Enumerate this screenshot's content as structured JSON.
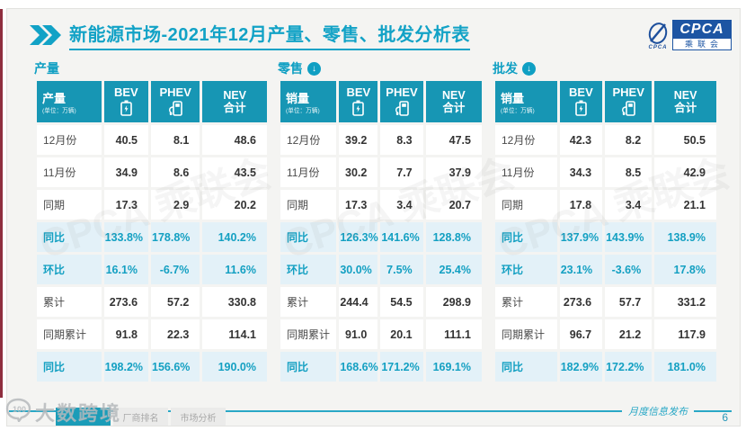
{
  "header": {
    "title": "新能源市场-2021年12月产量、零售、批发分析表",
    "logo": {
      "main": "CPCA",
      "sub": "乘联会",
      "emblem_caption": "CPCA"
    }
  },
  "icons": {
    "down_arrow": "↓"
  },
  "tables": [
    {
      "section_title": "产量",
      "header": {
        "label": "产量",
        "unit": "(单位：万辆)",
        "col_bev": "BEV",
        "col_phev": "PHEV",
        "col_nev_line1": "NEV",
        "col_nev_line2": "合计"
      },
      "rows": [
        {
          "label": "12月份",
          "values": [
            "40.5",
            "8.1",
            "48.6"
          ],
          "highlight": false
        },
        {
          "label": "11月份",
          "values": [
            "34.9",
            "8.6",
            "43.5"
          ],
          "highlight": false
        },
        {
          "label": "同期",
          "values": [
            "17.3",
            "2.9",
            "20.2"
          ],
          "highlight": false
        },
        {
          "label": "同比",
          "values": [
            "133.8%",
            "178.8%",
            "140.2%"
          ],
          "highlight": true
        },
        {
          "label": "环比",
          "values": [
            "16.1%",
            "-6.7%",
            "11.6%"
          ],
          "highlight": true
        },
        {
          "label": "累计",
          "values": [
            "273.6",
            "57.2",
            "330.8"
          ],
          "highlight": false
        },
        {
          "label": "同期累计",
          "values": [
            "91.8",
            "22.3",
            "114.1"
          ],
          "highlight": false
        },
        {
          "label": "同比",
          "values": [
            "198.2%",
            "156.6%",
            "190.0%"
          ],
          "highlight": true
        }
      ]
    },
    {
      "section_title": "零售",
      "header": {
        "label": "销量",
        "unit": "(单位：万辆)",
        "col_bev": "BEV",
        "col_phev": "PHEV",
        "col_nev_line1": "NEV",
        "col_nev_line2": "合计"
      },
      "rows": [
        {
          "label": "12月份",
          "values": [
            "39.2",
            "8.3",
            "47.5"
          ],
          "highlight": false
        },
        {
          "label": "11月份",
          "values": [
            "30.2",
            "7.7",
            "37.9"
          ],
          "highlight": false
        },
        {
          "label": "同期",
          "values": [
            "17.3",
            "3.4",
            "20.7"
          ],
          "highlight": false
        },
        {
          "label": "同比",
          "values": [
            "126.3%",
            "141.6%",
            "128.8%"
          ],
          "highlight": true
        },
        {
          "label": "环比",
          "values": [
            "30.0%",
            "7.5%",
            "25.4%"
          ],
          "highlight": true
        },
        {
          "label": "累计",
          "values": [
            "244.4",
            "54.5",
            "298.9"
          ],
          "highlight": false
        },
        {
          "label": "同期累计",
          "values": [
            "91.0",
            "20.1",
            "111.1"
          ],
          "highlight": false
        },
        {
          "label": "同比",
          "values": [
            "168.6%",
            "171.2%",
            "169.1%"
          ],
          "highlight": true
        }
      ]
    },
    {
      "section_title": "批发",
      "header": {
        "label": "销量",
        "unit": "(单位：万辆)",
        "col_bev": "BEV",
        "col_phev": "PHEV",
        "col_nev_line1": "NEV",
        "col_nev_line2": "合计"
      },
      "rows": [
        {
          "label": "12月份",
          "values": [
            "42.3",
            "8.2",
            "50.5"
          ],
          "highlight": false
        },
        {
          "label": "11月份",
          "values": [
            "34.3",
            "8.5",
            "42.9"
          ],
          "highlight": false
        },
        {
          "label": "同期",
          "values": [
            "17.8",
            "3.4",
            "21.1"
          ],
          "highlight": false
        },
        {
          "label": "同比",
          "values": [
            "137.9%",
            "143.9%",
            "138.9%"
          ],
          "highlight": true
        },
        {
          "label": "环比",
          "values": [
            "23.1%",
            "-3.6%",
            "17.8%"
          ],
          "highlight": true
        },
        {
          "label": "累计",
          "values": [
            "273.6",
            "57.7",
            "331.2"
          ],
          "highlight": false
        },
        {
          "label": "同期累计",
          "values": [
            "96.7",
            "21.2",
            "117.9"
          ],
          "highlight": false
        },
        {
          "label": "同比",
          "values": [
            "182.9%",
            "172.2%",
            "181.0%"
          ],
          "highlight": true
        }
      ]
    }
  ],
  "watermark_diagonal": "CPCA 乘联会",
  "footer": {
    "tabs": [
      {
        "label": "",
        "active": true
      },
      {
        "label": "厂商排名",
        "active": false
      },
      {
        "label": "市场分析",
        "active": false
      }
    ],
    "release_label": "月度信息发布",
    "page_number": "6"
  },
  "bottom_watermark": {
    "brand": "大数跨境",
    "logo_text": "100"
  },
  "colors": {
    "teal_header": "#1796b4",
    "teal_accent": "#12a2c6",
    "highlight_row_bg": "#e3f1f8",
    "logo_blue": "#1d55a3",
    "red_strip": "#8f2f3f"
  }
}
